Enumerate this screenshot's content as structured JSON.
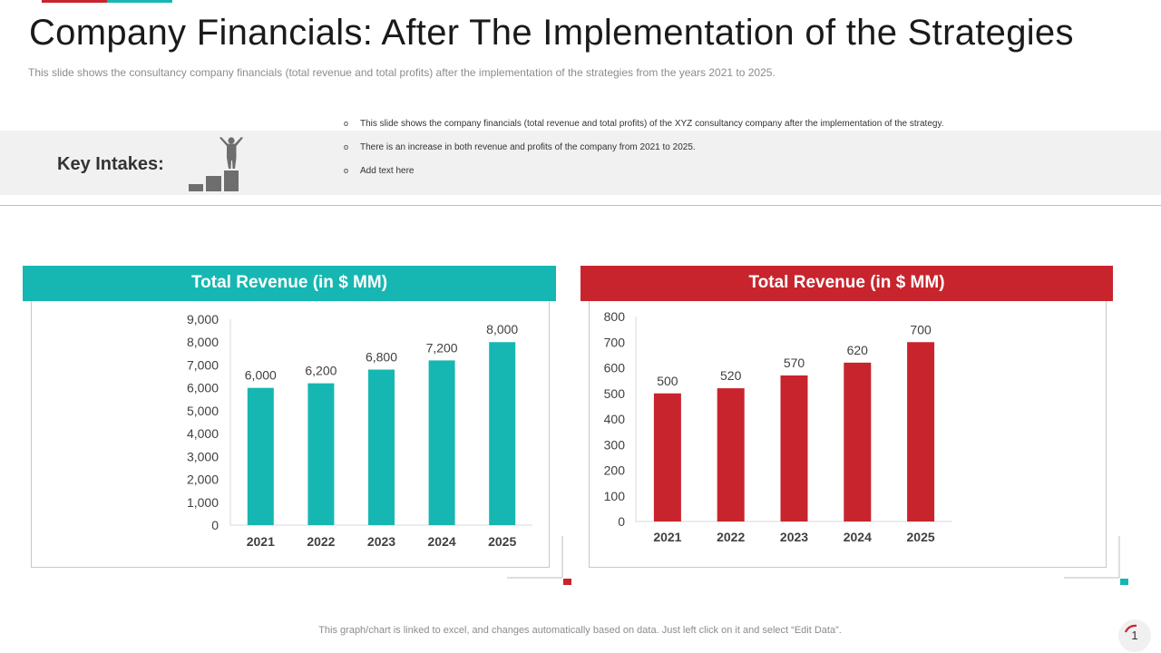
{
  "header": {
    "title": "Company Financials: After The Implementation of the Strategies",
    "subtitle": "This slide shows the consultancy company financials (total revenue  and total profits) after the implementation of the strategies from the years 2021 to 2025."
  },
  "key_intakes": {
    "label": "Key Intakes:",
    "icon": "podium-person-icon",
    "bullets": [
      "This slide shows the company financials (total revenue and total profits) of the XYZ consultancy company after the implementation of the strategy.",
      "There is an increase in both revenue and profits of the company from 2021 to 2025.",
      "Add text here"
    ]
  },
  "colors": {
    "teal": "#16b7b2",
    "red": "#c8242d",
    "axis": "#d9d9d9",
    "text": "#404040"
  },
  "chart_data": [
    {
      "type": "bar",
      "title": "Total Revenue (in $ MM)",
      "categories": [
        "2021",
        "2022",
        "2023",
        "2024",
        "2025"
      ],
      "values": [
        6000,
        6200,
        6800,
        7200,
        8000
      ],
      "value_labels": [
        "6,000",
        "6,200",
        "6,800",
        "7,200",
        "8,000"
      ],
      "ylim": [
        0,
        9000
      ],
      "yticks": [
        0,
        1000,
        2000,
        3000,
        4000,
        5000,
        6000,
        7000,
        8000,
        9000
      ],
      "ytick_labels": [
        "0",
        "1,000",
        "2,000",
        "3,000",
        "4,000",
        "5,000",
        "6,000",
        "7,000",
        "8,000",
        "9,000"
      ],
      "xlabel": "",
      "ylabel": "",
      "grid": false,
      "color": "#16b7b2"
    },
    {
      "type": "bar",
      "title": "Total Revenue (in $ MM)",
      "categories": [
        "2021",
        "2022",
        "2023",
        "2024",
        "2025"
      ],
      "values": [
        500,
        520,
        570,
        620,
        700
      ],
      "value_labels": [
        "500",
        "520",
        "570",
        "620",
        "700"
      ],
      "ylim": [
        0,
        800
      ],
      "yticks": [
        0,
        100,
        200,
        300,
        400,
        500,
        600,
        700,
        800
      ],
      "ytick_labels": [
        "0",
        "100",
        "200",
        "300",
        "400",
        "500",
        "600",
        "700",
        "800"
      ],
      "xlabel": "",
      "ylabel": "",
      "grid": false,
      "color": "#c8242d"
    }
  ],
  "footer": {
    "note": "This graph/chart is linked to excel,  and changes automatically based on data. Just left click on it and select “Edit Data”.",
    "page_number": "1"
  }
}
